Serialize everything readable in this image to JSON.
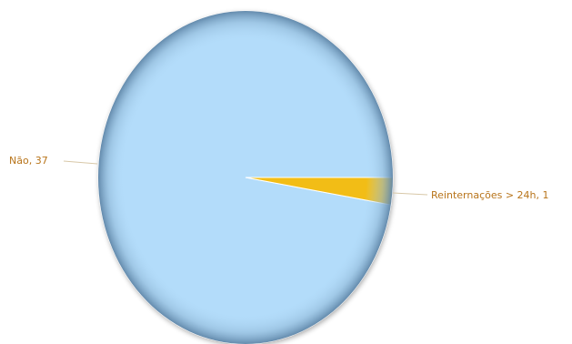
{
  "chart_data": {
    "type": "pie",
    "title": "",
    "categories": [
      "Não",
      "Reinternações > 24h"
    ],
    "values": [
      37,
      1
    ],
    "labels": [
      "Não, 37",
      "Reinternações > 24h, 1"
    ],
    "colors": [
      "#b3dcfa",
      "#f2bd16"
    ],
    "legend": "none",
    "label_color": "#b8741a"
  }
}
